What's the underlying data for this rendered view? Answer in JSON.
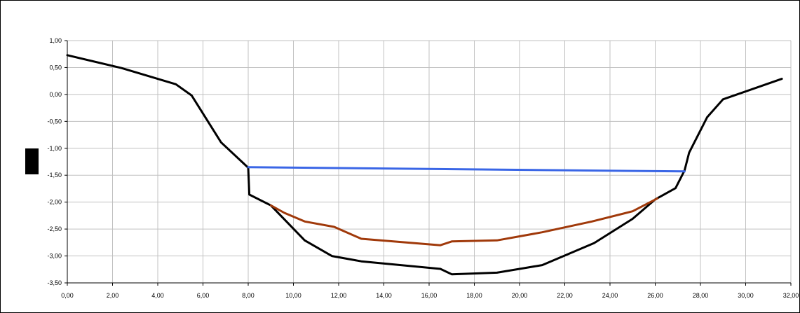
{
  "chart_data": {
    "type": "line",
    "title": "",
    "xlabel": "",
    "ylabel": "",
    "xlim": [
      0,
      32
    ],
    "ylim": [
      -3.5,
      1.0
    ],
    "x_ticks": [
      0,
      2,
      4,
      6,
      8,
      10,
      12,
      14,
      16,
      18,
      20,
      22,
      24,
      26,
      28,
      30,
      32
    ],
    "y_ticks": [
      1.0,
      0.5,
      0.0,
      -0.5,
      -1.0,
      -1.5,
      -2.0,
      -2.5,
      -3.0,
      -3.5
    ],
    "x_tick_labels": [
      "0,00",
      "2,00",
      "4,00",
      "6,00",
      "8,00",
      "10,00",
      "12,00",
      "14,00",
      "16,00",
      "18,00",
      "20,00",
      "22,00",
      "24,00",
      "26,00",
      "28,00",
      "30,00",
      "32,00"
    ],
    "y_tick_labels": [
      "1,00",
      "0,50",
      "0,00",
      "-0,50",
      "-1,00",
      "-1,50",
      "-2,00",
      "-2,50",
      "-3,00",
      "-3,50"
    ],
    "grid": true,
    "series": [
      {
        "color": "#000000",
        "x": [
          0.0,
          2.4,
          4.8,
          5.5,
          6.8,
          8.0,
          8.05,
          9.0,
          10.5,
          11.7,
          13.0,
          16.5,
          17.0,
          19.0,
          21.0,
          23.3,
          25.0,
          26.0,
          26.9,
          27.3,
          27.5,
          28.3,
          29.0,
          31.6
        ],
        "y": [
          0.73,
          0.49,
          0.19,
          -0.02,
          -0.89,
          -1.36,
          -1.86,
          -2.06,
          -2.71,
          -3.0,
          -3.1,
          -3.24,
          -3.34,
          -3.31,
          -3.17,
          -2.76,
          -2.31,
          -1.95,
          -1.74,
          -1.41,
          -1.08,
          -0.42,
          -0.09,
          0.29
        ]
      },
      {
        "color": "#a0390a",
        "x": [
          9.0,
          9.6,
          10.5,
          11.8,
          13.0,
          16.5,
          17.0,
          19.0,
          21.0,
          23.2,
          25.0,
          26.1
        ],
        "y": [
          -2.06,
          -2.2,
          -2.36,
          -2.46,
          -2.68,
          -2.8,
          -2.73,
          -2.71,
          -2.56,
          -2.36,
          -2.17,
          -1.93
        ]
      },
      {
        "color": "#3a66e6",
        "x": [
          8.0,
          27.3
        ],
        "y": [
          -1.35,
          -1.43
        ]
      }
    ]
  }
}
